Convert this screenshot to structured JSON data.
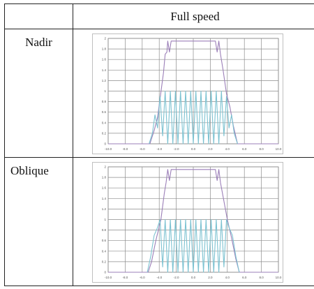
{
  "table": {
    "header": "Full speed",
    "rows": [
      {
        "label": "Nadir"
      },
      {
        "label": "Oblique"
      }
    ]
  },
  "colors": {
    "grid": "#8c8c8c",
    "chart_border": "#bfbfbf",
    "purple": "#9b7fb8",
    "cyan": "#7cc2d1",
    "tick": "#555555"
  },
  "chart_data": [
    {
      "type": "line",
      "x_ticks": [
        "-10.0",
        "-8.0",
        "-6.0",
        "-4.0",
        "-2.0",
        "0.0",
        "2.0",
        "4.0",
        "6.0",
        "8.0",
        "10.0"
      ],
      "y_ticks": [
        "0",
        "0.2",
        "0.4",
        "0.6",
        "0.8",
        "1",
        "1.2",
        "1.4",
        "1.6",
        "1.8",
        "2"
      ],
      "xlim": [
        -10,
        10
      ],
      "ylim": [
        0,
        2
      ],
      "grid": true,
      "series": [
        {
          "color": "purple",
          "x": [
            -10,
            -5.1,
            -4.6,
            -4.2,
            -3.5,
            -3.3,
            -3.1,
            -3.0,
            -2.8,
            -2.6,
            -2.2,
            -1.8,
            -1.4,
            -1.0,
            -0.6,
            -0.2,
            0.2,
            0.6,
            1.0,
            1.4,
            1.8,
            2.2,
            2.6,
            2.8,
            3.0,
            3.2,
            3.5,
            3.9,
            4.3,
            4.7,
            5.2,
            10
          ],
          "y": [
            0,
            0,
            0.25,
            0.5,
            1.35,
            1.7,
            1.74,
            1.95,
            1.74,
            1.95,
            1.95,
            1.95,
            1.95,
            1.95,
            1.95,
            1.95,
            1.95,
            1.95,
            1.95,
            1.95,
            1.95,
            1.95,
            1.95,
            1.74,
            1.95,
            1.7,
            1.4,
            0.95,
            0.7,
            0.35,
            0,
            0
          ]
        },
        {
          "color": "cyan",
          "x": [
            -5.2,
            -4.8,
            -4.5,
            -4.2,
            -3.9,
            -3.6,
            -3.3,
            -3.0,
            -2.7,
            -2.4,
            -2.1,
            -1.8,
            -1.5,
            -1.2,
            -0.9,
            -0.6,
            -0.3,
            0.0,
            0.3,
            0.6,
            0.9,
            1.2,
            1.5,
            1.8,
            2.1,
            2.4,
            2.7,
            3.0,
            3.3,
            3.6,
            3.9,
            4.2,
            4.5,
            4.8,
            5.2
          ],
          "y": [
            0,
            0.2,
            0.55,
            0.3,
            0.9,
            0.15,
            1.0,
            0,
            1.0,
            0,
            1.0,
            0,
            1.0,
            0,
            1.0,
            0,
            1.0,
            0,
            1.0,
            0,
            1.0,
            0,
            1.0,
            0,
            1.0,
            0,
            1.0,
            0,
            1.0,
            0.15,
            0.9,
            0.3,
            0.55,
            0.2,
            0
          ]
        }
      ]
    },
    {
      "type": "line",
      "x_ticks": [
        "-10.0",
        "-8.0",
        "-6.0",
        "-4.0",
        "-2.0",
        "0.0",
        "2.0",
        "4.0",
        "6.0",
        "8.0",
        "10.0"
      ],
      "y_ticks": [
        "0",
        "0.2",
        "0.4",
        "0.6",
        "0.8",
        "1",
        "1.2",
        "1.4",
        "1.6",
        "1.8",
        "2"
      ],
      "xlim": [
        -10,
        10
      ],
      "ylim": [
        0,
        2
      ],
      "grid": true,
      "series": [
        {
          "color": "purple",
          "x": [
            -10,
            -5.3,
            -4.9,
            -4.4,
            -3.8,
            -3.4,
            -3.2,
            -3.0,
            -2.8,
            -2.6,
            -2.2,
            -1.8,
            -1.4,
            -1.0,
            -0.6,
            -0.2,
            0.2,
            0.6,
            1.0,
            1.4,
            1.8,
            2.2,
            2.6,
            2.8,
            3.0,
            3.2,
            3.6,
            4.0,
            4.5,
            5.0,
            5.4,
            10
          ],
          "y": [
            0,
            0,
            0.2,
            0.6,
            1.0,
            1.5,
            1.7,
            1.95,
            1.74,
            1.95,
            1.95,
            1.95,
            1.95,
            1.95,
            1.95,
            1.95,
            1.95,
            1.95,
            1.95,
            1.95,
            1.95,
            1.95,
            1.95,
            1.74,
            1.95,
            1.7,
            1.35,
            1.0,
            0.65,
            0.25,
            0,
            0
          ]
        },
        {
          "color": "cyan",
          "x": [
            -5.4,
            -5.0,
            -4.6,
            -4.2,
            -3.9,
            -3.6,
            -3.3,
            -3.0,
            -2.7,
            -2.4,
            -2.1,
            -1.8,
            -1.5,
            -1.2,
            -0.9,
            -0.6,
            -0.3,
            0.0,
            0.3,
            0.6,
            0.9,
            1.2,
            1.5,
            1.8,
            2.1,
            2.4,
            2.7,
            3.0,
            3.3,
            3.6,
            3.9,
            4.2,
            4.6,
            5.0,
            5.4
          ],
          "y": [
            0,
            0.3,
            0.7,
            0.85,
            1.0,
            0.1,
            1.0,
            0,
            1.0,
            0,
            1.0,
            0,
            1.0,
            0,
            1.0,
            0,
            1.0,
            0,
            1.0,
            0,
            1.0,
            0,
            1.0,
            0,
            1.0,
            0,
            1.0,
            0,
            1.0,
            0.1,
            1.0,
            0.85,
            0.7,
            0.3,
            0
          ]
        }
      ]
    }
  ]
}
